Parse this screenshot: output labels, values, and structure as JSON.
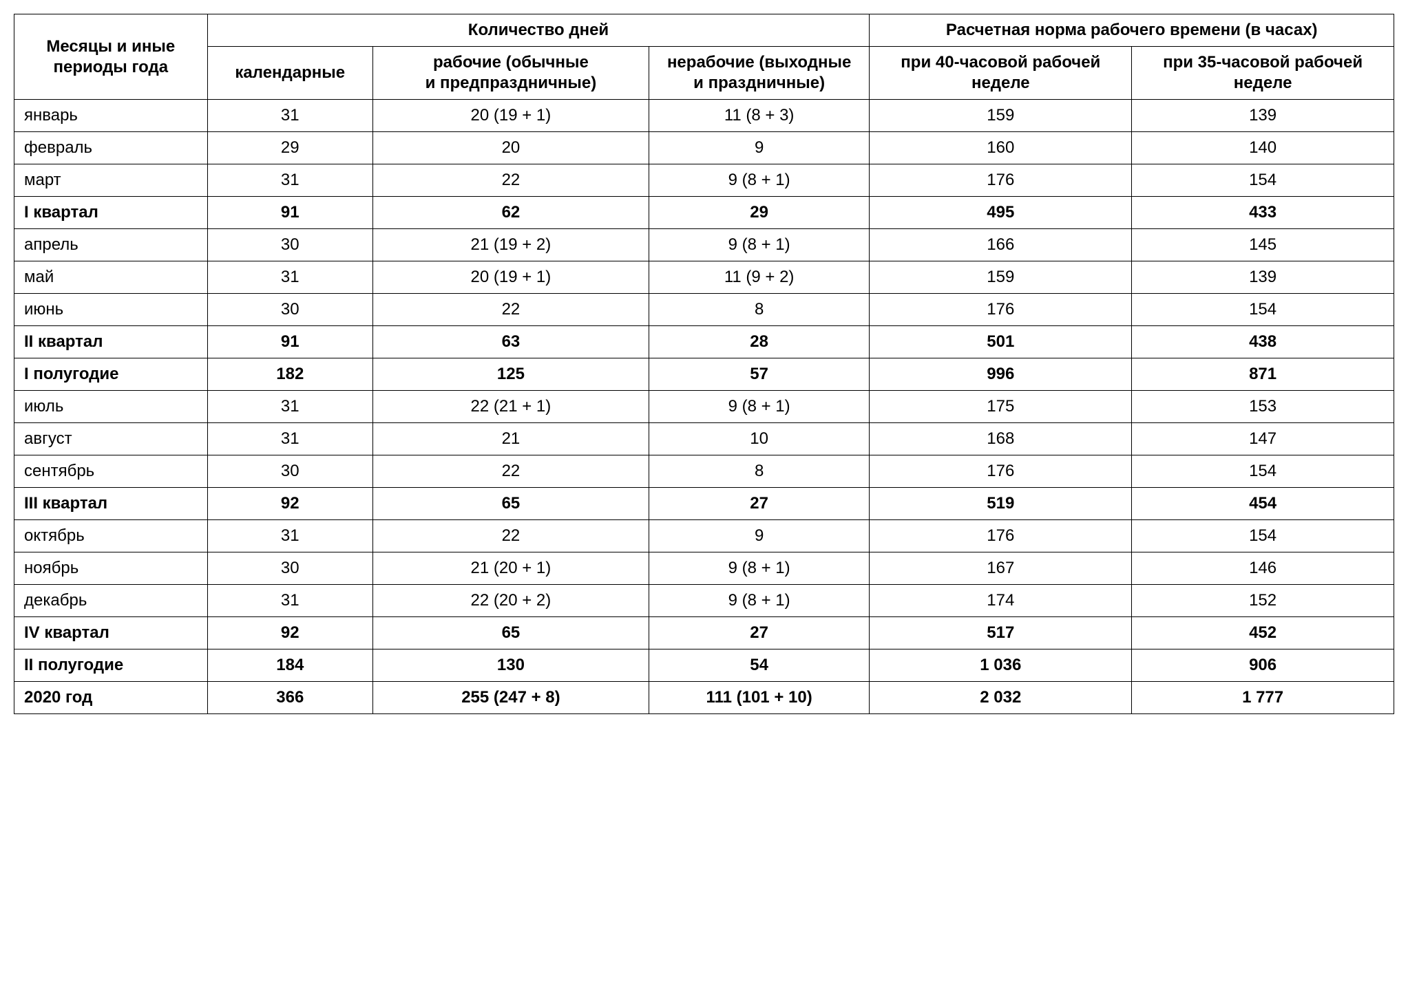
{
  "table": {
    "type": "table",
    "background_color": "#ffffff",
    "border_color": "#000000",
    "text_color": "#000000",
    "font_family": "Arial, Helvetica, sans-serif",
    "header_fontsize": 24,
    "body_fontsize": 24,
    "columns": [
      {
        "key": "period",
        "align": "left",
        "width_pct": 14
      },
      {
        "key": "cal",
        "align": "center",
        "width_pct": 12
      },
      {
        "key": "work",
        "align": "center",
        "width_pct": 20
      },
      {
        "key": "off",
        "align": "center",
        "width_pct": 16
      },
      {
        "key": "h40",
        "align": "center",
        "width_pct": 19
      },
      {
        "key": "h35",
        "align": "center",
        "width_pct": 19
      }
    ],
    "header": {
      "period": "Месяцы и иные периоды года",
      "days_group": "Количество дней",
      "hours_group": "Расчетная норма рабочего времени (в часах)",
      "cal": "календарные",
      "work": "рабочие (обычные и предпраздничные)",
      "off": "нерабочие (выходные и праздничные)",
      "h40": "при 40-часовой рабочей неделе",
      "h35": "при 35-часовой рабочей неделе"
    },
    "rows": [
      {
        "period": "январь",
        "cal": "31",
        "work": "20 (19 + 1)",
        "off": "11 (8 + 3)",
        "h40": "159",
        "h35": "139",
        "bold": false
      },
      {
        "period": "февраль",
        "cal": "29",
        "work": "20",
        "off": "9",
        "h40": "160",
        "h35": "140",
        "bold": false
      },
      {
        "period": "март",
        "cal": "31",
        "work": "22",
        "off": "9 (8 + 1)",
        "h40": "176",
        "h35": "154",
        "bold": false
      },
      {
        "period": "I квартал",
        "cal": "91",
        "work": "62",
        "off": "29",
        "h40": "495",
        "h35": "433",
        "bold": true
      },
      {
        "period": "апрель",
        "cal": "30",
        "work": "21 (19 + 2)",
        "off": "9 (8 + 1)",
        "h40": "166",
        "h35": "145",
        "bold": false
      },
      {
        "period": "май",
        "cal": "31",
        "work": "20 (19 + 1)",
        "off": "11 (9 + 2)",
        "h40": "159",
        "h35": "139",
        "bold": false
      },
      {
        "period": "июнь",
        "cal": "30",
        "work": "22",
        "off": "8",
        "h40": "176",
        "h35": "154",
        "bold": false
      },
      {
        "period": "II квартал",
        "cal": "91",
        "work": "63",
        "off": "28",
        "h40": "501",
        "h35": "438",
        "bold": true
      },
      {
        "period": "I полугодие",
        "cal": "182",
        "work": "125",
        "off": "57",
        "h40": "996",
        "h35": "871",
        "bold": true
      },
      {
        "period": "июль",
        "cal": "31",
        "work": "22 (21 + 1)",
        "off": "9 (8 + 1)",
        "h40": "175",
        "h35": "153",
        "bold": false
      },
      {
        "period": "август",
        "cal": "31",
        "work": "21",
        "off": "10",
        "h40": "168",
        "h35": "147",
        "bold": false
      },
      {
        "period": "сентябрь",
        "cal": "30",
        "work": "22",
        "off": "8",
        "h40": "176",
        "h35": "154",
        "bold": false
      },
      {
        "period": "III квартал",
        "cal": "92",
        "work": "65",
        "off": "27",
        "h40": "519",
        "h35": "454",
        "bold": true
      },
      {
        "period": "октябрь",
        "cal": "31",
        "work": "22",
        "off": "9",
        "h40": "176",
        "h35": "154",
        "bold": false
      },
      {
        "period": "ноябрь",
        "cal": "30",
        "work": "21 (20 + 1)",
        "off": "9 (8 + 1)",
        "h40": "167",
        "h35": "146",
        "bold": false
      },
      {
        "period": "декабрь",
        "cal": "31",
        "work": "22 (20 + 2)",
        "off": "9 (8 + 1)",
        "h40": "174",
        "h35": "152",
        "bold": false
      },
      {
        "period": "IV квартал",
        "cal": "92",
        "work": "65",
        "off": "27",
        "h40": "517",
        "h35": "452",
        "bold": true
      },
      {
        "period": "II полугодие",
        "cal": "184",
        "work": "130",
        "off": "54",
        "h40": "1 036",
        "h35": "906",
        "bold": true
      },
      {
        "period": "2020 год",
        "cal": "366",
        "work": "255 (247 + 8)",
        "off": "111 (101 + 10)",
        "h40": "2 032",
        "h35": "1 777",
        "bold": true
      }
    ]
  }
}
